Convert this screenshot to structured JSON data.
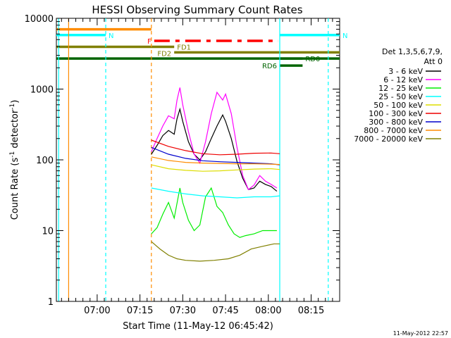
{
  "chart_data": {
    "type": "line",
    "title": "HESSI Observing Summary Count Rates",
    "xlabel": "Start Time (11-May-12 06:45:42)",
    "ylabel_main": "Count Rate (s",
    "ylabel_sup1": "-1",
    "ylabel_mid": " detector",
    "ylabel_sup2": "-1",
    "ylabel_end": ")",
    "y_scale": "log",
    "ylim": [
      1,
      10000
    ],
    "xlim": [
      "06:45:42",
      "08:25:00"
    ],
    "x_ticks": [
      "07:00",
      "07:15",
      "07:30",
      "07:45",
      "08:00",
      "08:15"
    ],
    "y_ticks": [
      "1",
      "10",
      "100",
      "1000",
      "10000"
    ],
    "footer": "11-May-2012 22:57",
    "legend": {
      "header": [
        "Det 1,3,5,6,7,9,",
        "Att 0"
      ],
      "position": "right",
      "entries": [
        {
          "label": "3 - 6 keV",
          "color": "#000000"
        },
        {
          "label": "6 - 12 keV",
          "color": "#ff00ff"
        },
        {
          "label": "12 - 25 keV",
          "color": "#00ee00"
        },
        {
          "label": "25 - 50 keV",
          "color": "#00ffff"
        },
        {
          "label": "50 - 100 keV",
          "color": "#dddd00"
        },
        {
          "label": "100 - 300 keV",
          "color": "#ee0000"
        },
        {
          "label": "300 - 800 keV",
          "color": "#0000cc"
        },
        {
          "label": "800 - 7000 keV",
          "color": "#ff8c00"
        },
        {
          "label": "7000 - 20000 keV",
          "color": "#808000"
        }
      ]
    },
    "flag_labels": {
      "N": "N",
      "F": "F",
      "FD1": "FD1",
      "FD2": "FD2",
      "RD0": "RD0",
      "RD6": "RD6"
    },
    "series": [
      {
        "name": "3 - 6 keV",
        "color": "#000000",
        "x": [
          "07:19",
          "07:21",
          "07:23",
          "07:25",
          "07:27",
          "07:28",
          "07:29",
          "07:30",
          "07:32",
          "07:34",
          "07:36",
          "07:38",
          "07:40",
          "07:42",
          "07:44",
          "07:45",
          "07:47",
          "07:49",
          "07:51",
          "07:53",
          "07:55",
          "07:57",
          "07:59",
          "08:01",
          "08:03"
        ],
        "y": [
          120,
          160,
          220,
          260,
          230,
          380,
          520,
          350,
          180,
          120,
          100,
          130,
          200,
          300,
          430,
          350,
          200,
          95,
          55,
          38,
          40,
          50,
          45,
          42,
          36
        ]
      },
      {
        "name": "6 - 12 keV",
        "color": "#ff00ff",
        "x": [
          "07:19",
          "07:21",
          "07:23",
          "07:25",
          "07:27",
          "07:28",
          "07:29",
          "07:30",
          "07:32",
          "07:34",
          "07:36",
          "07:38",
          "07:40",
          "07:42",
          "07:44",
          "07:45",
          "07:47",
          "07:49",
          "07:51",
          "07:53",
          "07:55",
          "07:57",
          "07:59",
          "08:01",
          "08:03"
        ],
        "y": [
          130,
          200,
          300,
          420,
          380,
          700,
          1050,
          600,
          250,
          120,
          90,
          180,
          450,
          900,
          700,
          850,
          450,
          150,
          60,
          38,
          44,
          60,
          50,
          45,
          40
        ]
      },
      {
        "name": "12 - 25 keV",
        "color": "#00ee00",
        "x": [
          "07:19",
          "07:21",
          "07:23",
          "07:25",
          "07:27",
          "07:29",
          "07:30",
          "07:32",
          "07:34",
          "07:36",
          "07:38",
          "07:40",
          "07:42",
          "07:44",
          "07:46",
          "07:48",
          "07:50",
          "07:52",
          "07:55",
          "07:58",
          "08:01",
          "08:03"
        ],
        "y": [
          9,
          11,
          17,
          25,
          15,
          40,
          25,
          14,
          10,
          12,
          30,
          40,
          22,
          18,
          12,
          9,
          8,
          8.5,
          9,
          10,
          10,
          10
        ]
      },
      {
        "name": "25 - 50 keV",
        "color": "#00ffff",
        "x": [
          "07:19",
          "07:25",
          "07:31",
          "07:37",
          "07:43",
          "07:49",
          "07:55",
          "08:01",
          "08:04"
        ],
        "y": [
          40,
          36,
          33,
          31,
          30,
          29,
          30,
          30,
          31
        ]
      },
      {
        "name": "50 - 100 keV",
        "color": "#dddd00",
        "x": [
          "07:19",
          "07:25",
          "07:31",
          "07:37",
          "07:43",
          "07:49",
          "07:55",
          "08:01",
          "08:04"
        ],
        "y": [
          85,
          75,
          71,
          69,
          70,
          72,
          74,
          75,
          73
        ]
      },
      {
        "name": "100 - 300 keV",
        "color": "#ee0000",
        "x": [
          "07:19",
          "07:25",
          "07:31",
          "07:37",
          "07:43",
          "07:49",
          "07:55",
          "08:01",
          "08:04"
        ],
        "y": [
          190,
          155,
          135,
          122,
          118,
          120,
          124,
          125,
          122
        ]
      },
      {
        "name": "300 - 800 keV",
        "color": "#0000cc",
        "x": [
          "07:19",
          "07:25",
          "07:31",
          "07:37",
          "07:43",
          "07:49",
          "07:55",
          "08:01",
          "08:04"
        ],
        "y": [
          150,
          120,
          105,
          97,
          94,
          92,
          90,
          88,
          85
        ]
      },
      {
        "name": "800 - 7000 keV",
        "color": "#ff8c00",
        "x": [
          "07:19",
          "07:25",
          "07:31",
          "07:37",
          "07:43",
          "07:49",
          "07:55",
          "08:01",
          "08:04"
        ],
        "y": [
          110,
          98,
          92,
          90,
          89,
          88,
          88,
          87,
          86
        ]
      },
      {
        "name": "7000 - 20000 keV",
        "color": "#808000",
        "x": [
          "07:19",
          "07:22",
          "07:25",
          "07:28",
          "07:31",
          "07:36",
          "07:41",
          "07:46",
          "07:50",
          "07:54",
          "07:58",
          "08:02",
          "08:04"
        ],
        "y": [
          7,
          5.5,
          4.5,
          4,
          3.8,
          3.7,
          3.8,
          4,
          4.5,
          5.5,
          6,
          6.5,
          6.5
        ]
      }
    ],
    "flag_bars": [
      {
        "label_key": "",
        "x": [
          "06:45:42",
          "07:19:00"
        ],
        "y": 7000,
        "color": "#ff8c00",
        "style": "solid"
      },
      {
        "label_key": "N",
        "x": [
          "06:45:42",
          "07:03:00"
        ],
        "y": 5800,
        "color": "#00ffff",
        "style": "solid"
      },
      {
        "label_key": "N",
        "x": [
          "08:04:00",
          "08:25:00"
        ],
        "y": 5800,
        "color": "#00ffff",
        "style": "solid"
      },
      {
        "label_key": "F",
        "x": [
          "07:20:00",
          "08:03:30"
        ],
        "y": 4800,
        "color": "#ff0000",
        "style": "dashed"
      },
      {
        "label_key": "FD1",
        "x": [
          "06:45:42",
          "07:27:00"
        ],
        "y": 3950,
        "color": "#808000",
        "style": "solid"
      },
      {
        "label_key": "FD2",
        "x": [
          "07:27:00",
          "08:25:00"
        ],
        "y": 3300,
        "color": "#808000",
        "style": "solid"
      },
      {
        "label_key": "",
        "x": [
          "06:45:42",
          "08:25:00"
        ],
        "y": 2700,
        "color": "#006400",
        "style": "solid"
      },
      {
        "label_key": "RD0",
        "x": [
          "08:04:00",
          "08:12:00"
        ],
        "y": 2700,
        "color": "#006400",
        "style": "solid"
      },
      {
        "label_key": "RD6",
        "x": [
          "08:04:00",
          "08:12:00"
        ],
        "y": 2150,
        "color": "#006400",
        "style": "solid"
      }
    ],
    "vertical_markers": [
      {
        "x": "06:46:30",
        "color": "#00ffff",
        "style": "solid"
      },
      {
        "x": "06:50:00",
        "color": "#ff8c00",
        "style": "solid"
      },
      {
        "x": "07:03:00",
        "color": "#00ffff",
        "style": "dashed"
      },
      {
        "x": "07:19:00",
        "color": "#ff8c00",
        "style": "dashed"
      },
      {
        "x": "08:04:00",
        "color": "#00ffff",
        "style": "solid"
      },
      {
        "x": "08:21:00",
        "color": "#00ffff",
        "style": "dashed"
      }
    ]
  }
}
